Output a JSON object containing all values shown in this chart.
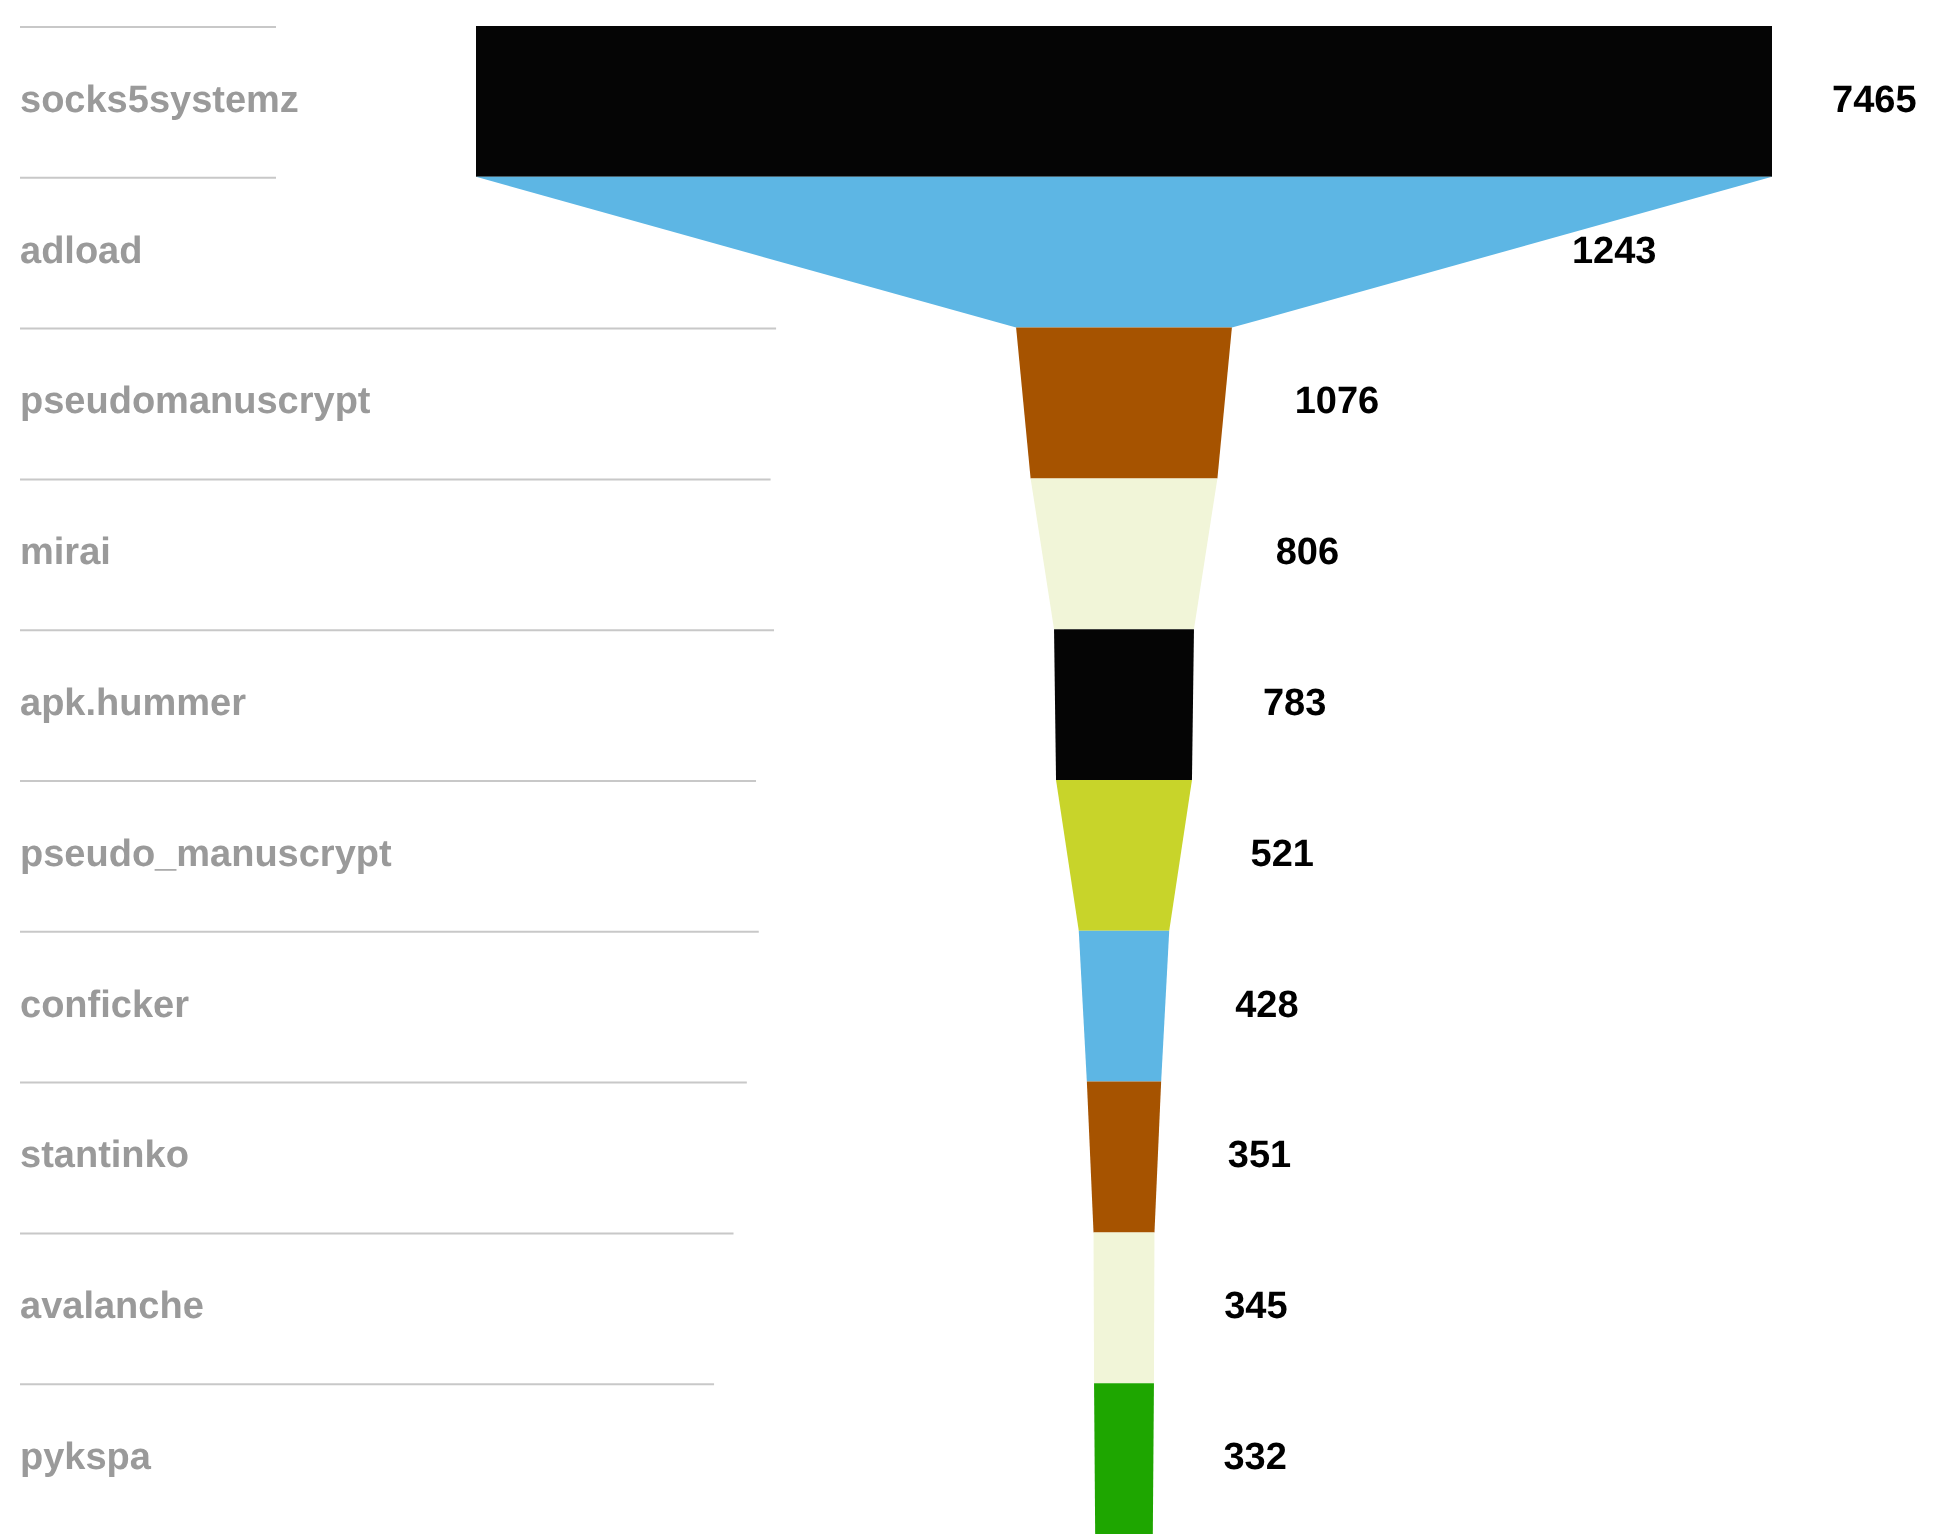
{
  "chart_data": {
    "type": "other",
    "categories": [
      "socks5systemz",
      "adload",
      "pseudomanuscrypt",
      "mirai",
      "apk.hummer",
      "pseudo_manuscrypt",
      "conficker",
      "stantinko",
      "avalanche",
      "pykspa"
    ],
    "values": [
      7465,
      1243,
      1076,
      806,
      783,
      521,
      428,
      351,
      345,
      332
    ],
    "data_labels": true,
    "colors": [
      "#050505",
      "#5db6e4",
      "#a65300",
      "#f1f5d8",
      "#050505",
      "#c8d42a",
      "#5db6e4",
      "#a65300",
      "#f1f5d8",
      "#1ea600"
    ]
  }
}
